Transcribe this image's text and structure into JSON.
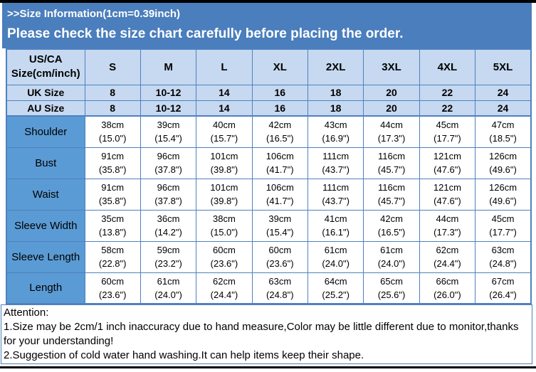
{
  "banner": {
    "title": ">>Size Information(1cm=0.39inch)",
    "subtitle": "Please check the size chart carefully before placing the order."
  },
  "size_table": {
    "corner_header": [
      "US/CA",
      "Size(cm/inch)"
    ],
    "size_columns": [
      "S",
      "M",
      "L",
      "XL",
      "2XL",
      "3XL",
      "4XL",
      "5XL"
    ],
    "region_rows": [
      {
        "label": "UK Size",
        "values": [
          "8",
          "10-12",
          "14",
          "16",
          "18",
          "20",
          "22",
          "24"
        ]
      },
      {
        "label": "AU Size",
        "values": [
          "8",
          "10-12",
          "14",
          "16",
          "18",
          "20",
          "22",
          "24"
        ]
      }
    ],
    "measurement_rows": [
      {
        "label": "Shoulder",
        "values": [
          {
            "cm": "38cm",
            "inch": "(15.0\")"
          },
          {
            "cm": "39cm",
            "inch": "(15.4\")"
          },
          {
            "cm": "40cm",
            "inch": "(15.7\")"
          },
          {
            "cm": "42cm",
            "inch": "(16.5\")"
          },
          {
            "cm": "43cm",
            "inch": "(16.9\")"
          },
          {
            "cm": "44cm",
            "inch": "(17.3\")"
          },
          {
            "cm": "45cm",
            "inch": "(17.7\")"
          },
          {
            "cm": "47cm",
            "inch": "(18.5\")"
          }
        ]
      },
      {
        "label": "Bust",
        "values": [
          {
            "cm": "91cm",
            "inch": "(35.8\")"
          },
          {
            "cm": "96cm",
            "inch": "(37.8\")"
          },
          {
            "cm": "101cm",
            "inch": "(39.8\")"
          },
          {
            "cm": "106cm",
            "inch": "(41.7\")"
          },
          {
            "cm": "111cm",
            "inch": "(43.7\")"
          },
          {
            "cm": "116cm",
            "inch": "(45.7\")"
          },
          {
            "cm": "121cm",
            "inch": "(47.6\")"
          },
          {
            "cm": "126cm",
            "inch": "(49.6\")"
          }
        ]
      },
      {
        "label": "Waist",
        "values": [
          {
            "cm": "91cm",
            "inch": "(35.8\")"
          },
          {
            "cm": "96cm",
            "inch": "(37.8\")"
          },
          {
            "cm": "101cm",
            "inch": "(39.8\")"
          },
          {
            "cm": "106cm",
            "inch": "(41.7\")"
          },
          {
            "cm": "111cm",
            "inch": "(43.7\")"
          },
          {
            "cm": "116cm",
            "inch": "(45.7\")"
          },
          {
            "cm": "121cm",
            "inch": "(47.6\")"
          },
          {
            "cm": "126cm",
            "inch": "(49.6\")"
          }
        ]
      },
      {
        "label": "Sleeve Width",
        "values": [
          {
            "cm": "35cm",
            "inch": "(13.8\")"
          },
          {
            "cm": "36cm",
            "inch": "(14.2\")"
          },
          {
            "cm": "38cm",
            "inch": "(15.0\")"
          },
          {
            "cm": "39cm",
            "inch": "(15.4\")"
          },
          {
            "cm": "41cm",
            "inch": "(16.1\")"
          },
          {
            "cm": "42cm",
            "inch": "(16.5\")"
          },
          {
            "cm": "44cm",
            "inch": "(17.3\")"
          },
          {
            "cm": "45cm",
            "inch": "(17.7\")"
          }
        ]
      },
      {
        "label": "Sleeve Length",
        "values": [
          {
            "cm": "58cm",
            "inch": "(22.8\")"
          },
          {
            "cm": "59cm",
            "inch": "(23.2\")"
          },
          {
            "cm": "60cm",
            "inch": "(23.6\")"
          },
          {
            "cm": "60cm",
            "inch": "(23.6\")"
          },
          {
            "cm": "61cm",
            "inch": "(24.0\")"
          },
          {
            "cm": "61cm",
            "inch": "(24.0\")"
          },
          {
            "cm": "62cm",
            "inch": "(24.4\")"
          },
          {
            "cm": "63cm",
            "inch": "(24.8\")"
          }
        ]
      },
      {
        "label": "Length",
        "values": [
          {
            "cm": "60cm",
            "inch": "(23.6\")"
          },
          {
            "cm": "61cm",
            "inch": "(24.0\")"
          },
          {
            "cm": "62cm",
            "inch": "(24.4\")"
          },
          {
            "cm": "63cm",
            "inch": "(24.8\")"
          },
          {
            "cm": "64cm",
            "inch": "(25.2\")"
          },
          {
            "cm": "65cm",
            "inch": "(25.6\")"
          },
          {
            "cm": "66cm",
            "inch": "(26.0\")"
          },
          {
            "cm": "67cm",
            "inch": "(26.4\")"
          }
        ]
      }
    ]
  },
  "attention": {
    "heading": "Attention:",
    "notes": [
      "1.Size may be 2cm/1 inch inaccuracy due to hand measure,Color may be little different due to monitor,thanks for your understanding!",
      "2.Suggestion of cold water hand washing.It can help items keep their shape."
    ]
  },
  "colors": {
    "banner_blue": "#4a7ebc",
    "header_light_blue": "#c6d9f1",
    "label_blue": "#5b9bd5",
    "border_blue": "#4f81bd",
    "bar_black": "#000000"
  }
}
